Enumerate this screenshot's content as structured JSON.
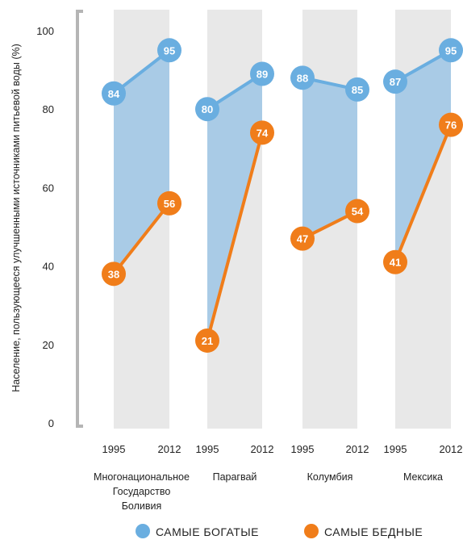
{
  "chart_data": {
    "type": "line",
    "ylabel": "Население, пользующееся улучшенными источниками питьевой воды (%)",
    "ylim": [
      0,
      100
    ],
    "yticks": [
      0,
      20,
      40,
      60,
      80,
      100
    ],
    "groups": [
      {
        "name": "Многонациональное\nГосударство\nБоливия",
        "x": [
          "1995",
          "2012"
        ],
        "rich": [
          84,
          95
        ],
        "poor": [
          38,
          56
        ]
      },
      {
        "name": "Парагвай",
        "x": [
          "1995",
          "2012"
        ],
        "rich": [
          80,
          89
        ],
        "poor": [
          21,
          74
        ]
      },
      {
        "name": "Колумбия",
        "x": [
          "1995",
          "2012"
        ],
        "rich": [
          88,
          85
        ],
        "poor": [
          47,
          54
        ]
      },
      {
        "name": "Мексика",
        "x": [
          "1995",
          "2012"
        ],
        "rich": [
          87,
          95
        ],
        "poor": [
          41,
          76
        ]
      }
    ],
    "series": [
      {
        "key": "rich",
        "name": "САМЫЕ БОГАТЫЕ",
        "color": "#6aaee0"
      },
      {
        "key": "poor",
        "name": "САМЫЕ БЕДНЫЕ",
        "color": "#f07d1a"
      }
    ],
    "fill_color": "#a9cbe6",
    "band_color": "#e8e8e8",
    "legend_position": "bottom"
  }
}
